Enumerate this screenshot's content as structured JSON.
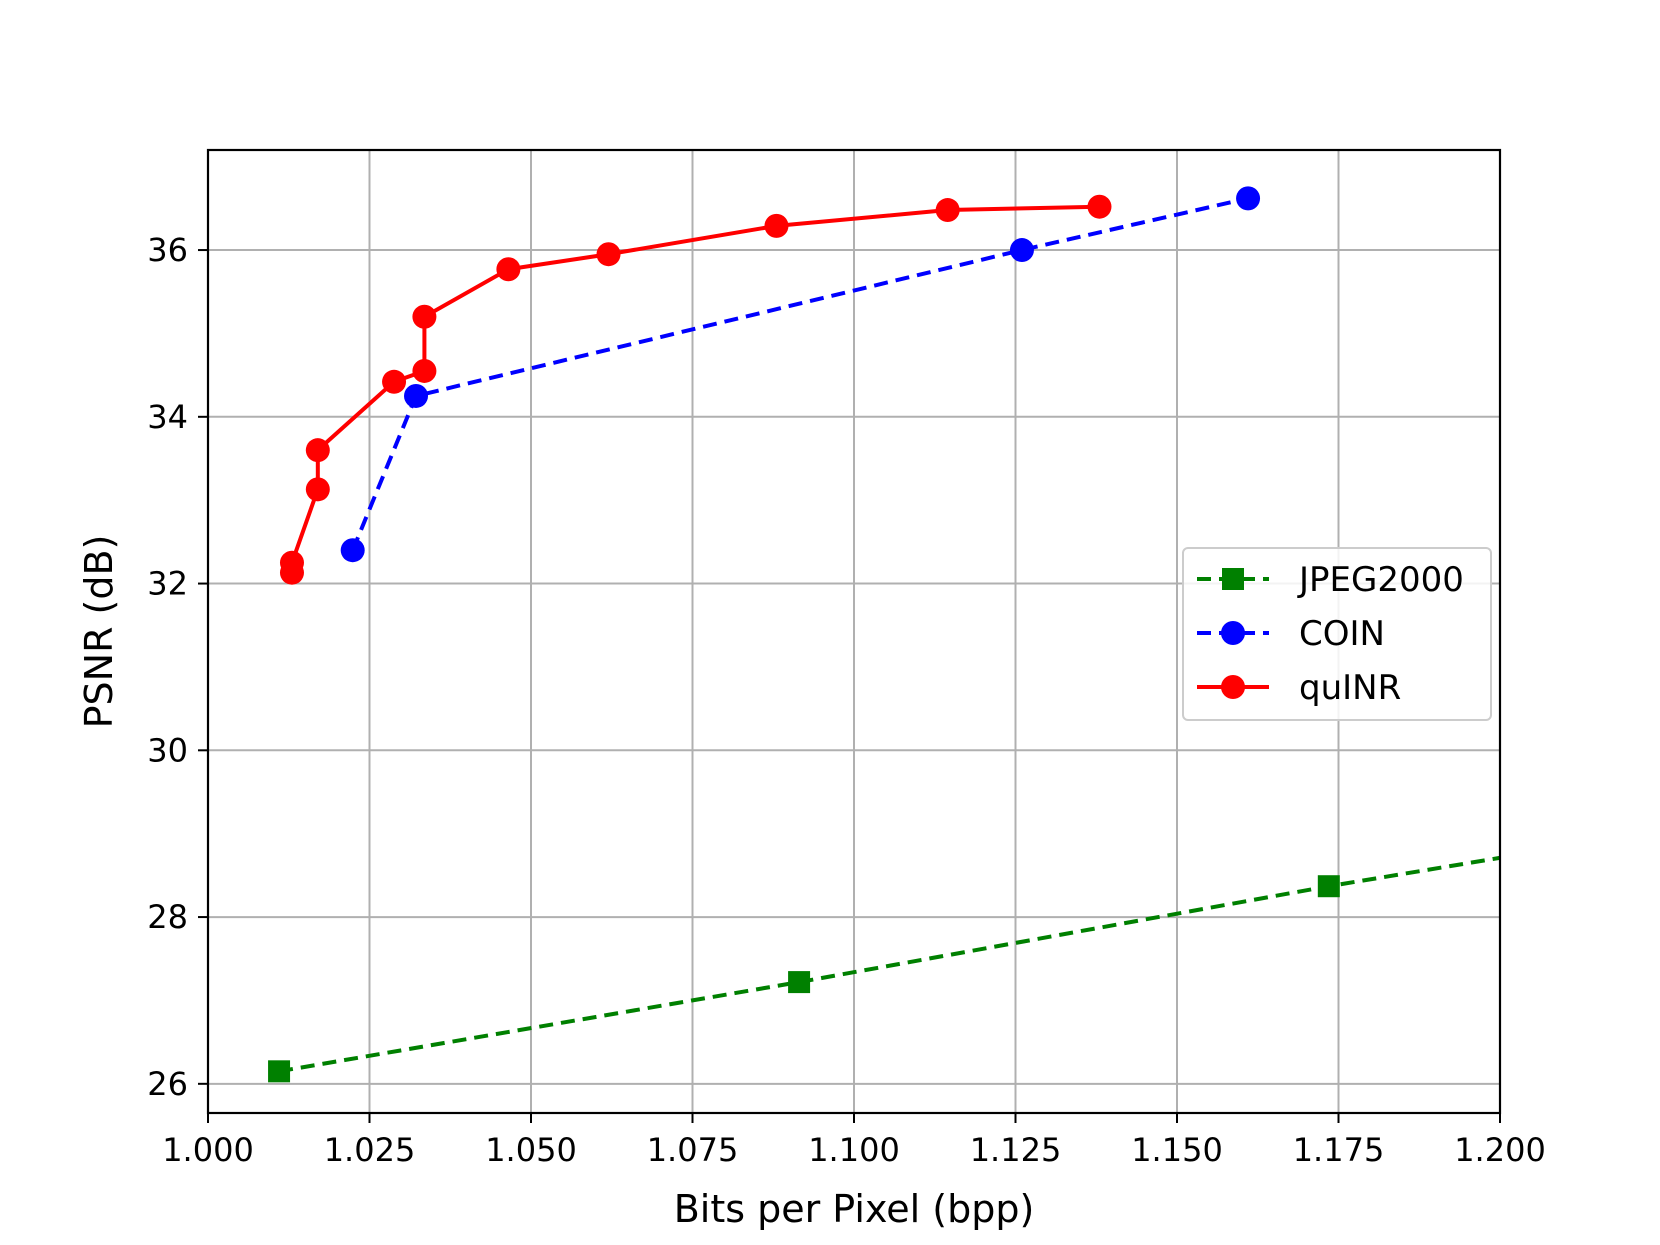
{
  "chart_data": {
    "type": "line",
    "title": "",
    "xlabel": "Bits per Pixel (bpp)",
    "ylabel": "PSNR (dB)",
    "xlim": [
      1.0,
      1.2
    ],
    "ylim": [
      25.65,
      37.2
    ],
    "grid": true,
    "legend_position": "center-right",
    "x_ticks": [
      1.0,
      1.025,
      1.05,
      1.075,
      1.1,
      1.125,
      1.15,
      1.175,
      1.2
    ],
    "x_tick_labels": [
      "1.000",
      "1.025",
      "1.050",
      "1.075",
      "1.100",
      "1.125",
      "1.150",
      "1.175",
      "1.200"
    ],
    "y_ticks": [
      26,
      28,
      30,
      32,
      34,
      36
    ],
    "y_tick_labels": [
      "26",
      "28",
      "30",
      "32",
      "34",
      "36"
    ],
    "series": [
      {
        "name": "JPEG2000",
        "color": "#008000",
        "line_style": "dashed",
        "marker": "square",
        "x": [
          1.011,
          1.0915,
          1.1735,
          1.2062
        ],
        "y": [
          26.15,
          27.22,
          28.37,
          28.79
        ],
        "marker_count": 3
      },
      {
        "name": "COIN",
        "color": "#0000ff",
        "line_style": "dashed",
        "marker": "circle",
        "x": [
          1.0224,
          1.0322,
          1.126,
          1.161
        ],
        "y": [
          32.4,
          34.25,
          36.0,
          36.62
        ]
      },
      {
        "name": "quINR",
        "color": "#ff0000",
        "line_style": "solid",
        "marker": "circle",
        "x": [
          1.013,
          1.013,
          1.017,
          1.017,
          1.0288,
          1.0335,
          1.0335,
          1.0465,
          1.062,
          1.088,
          1.1145,
          1.138
        ],
        "y": [
          32.13,
          32.25,
          33.13,
          33.6,
          34.42,
          34.55,
          35.2,
          35.77,
          35.95,
          36.29,
          36.48,
          36.52
        ]
      }
    ]
  }
}
